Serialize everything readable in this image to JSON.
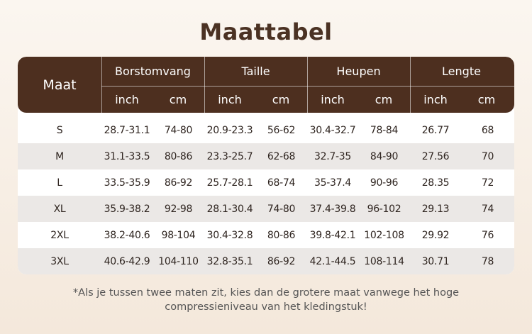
{
  "title": "Maattabel",
  "header": {
    "size_label": "Maat",
    "groups": [
      "Borstomvang",
      "Taille",
      "Heupen",
      "Lengte"
    ],
    "units": [
      "inch",
      "cm",
      "inch",
      "cm",
      "inch",
      "cm",
      "inch",
      "cm"
    ]
  },
  "rows": [
    {
      "size": "S",
      "values": [
        "28.7-31.1",
        "74-80",
        "20.9-23.3",
        "56-62",
        "30.4-32.7",
        "78-84",
        "26.77",
        "68"
      ]
    },
    {
      "size": "M",
      "values": [
        "31.1-33.5",
        "80-86",
        "23.3-25.7",
        "62-68",
        "32.7-35",
        "84-90",
        "27.56",
        "70"
      ]
    },
    {
      "size": "L",
      "values": [
        "33.5-35.9",
        "86-92",
        "25.7-28.1",
        "68-74",
        "35-37.4",
        "90-96",
        "28.35",
        "72"
      ]
    },
    {
      "size": "XL",
      "values": [
        "35.9-38.2",
        "92-98",
        "28.1-30.4",
        "74-80",
        "37.4-39.8",
        "96-102",
        "29.13",
        "74"
      ]
    },
    {
      "size": "2XL",
      "values": [
        "38.2-40.6",
        "98-104",
        "30.4-32.8",
        "80-86",
        "39.8-42.1",
        "102-108",
        "29.92",
        "76"
      ]
    },
    {
      "size": "3XL",
      "values": [
        "40.6-42.9",
        "104-110",
        "32.8-35.1",
        "86-92",
        "42.1-44.5",
        "108-114",
        "30.71",
        "78"
      ]
    }
  ],
  "footnote": "*Als je tussen twee maten zit, kies dan de grotere maat vanwege het hoge compressieniveau van het kledingstuk!",
  "colors": {
    "header_bg": "#4d2f1f",
    "alt_row_bg": "#ebe8e6",
    "title": "#4b3223"
  }
}
